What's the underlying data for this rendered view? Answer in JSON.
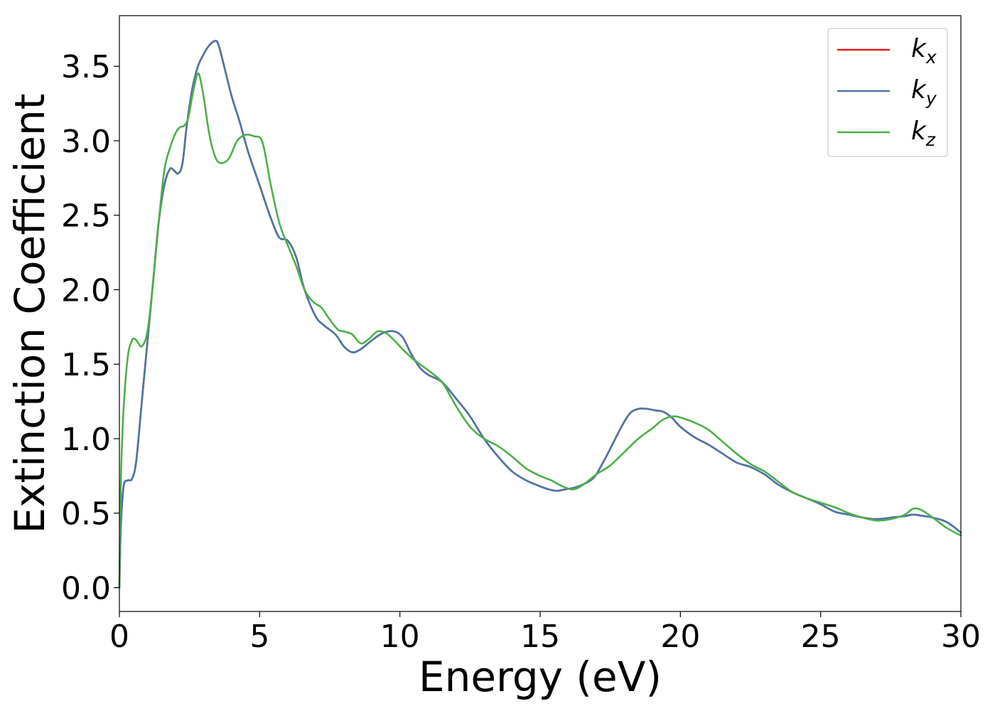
{
  "chart_data": {
    "type": "line",
    "title": "",
    "xlabel": "Energy (eV)",
    "ylabel": "Extinction Coefficient",
    "xlim": [
      0,
      30
    ],
    "ylim": [
      -0.16,
      3.84
    ],
    "xticks": [
      0,
      5,
      10,
      15,
      20,
      25,
      30
    ],
    "xtick_labels": [
      "0",
      "5",
      "10",
      "15",
      "20",
      "25",
      "30"
    ],
    "yticks": [
      0.0,
      0.5,
      1.0,
      1.5,
      2.0,
      2.5,
      3.0,
      3.5
    ],
    "ytick_labels": [
      "0.0",
      "0.5",
      "1.0",
      "1.5",
      "2.0",
      "2.5",
      "3.0",
      "3.5"
    ],
    "grid": false,
    "legend_position": "top-right",
    "series": [
      {
        "name": "k",
        "subscript": "x",
        "color": "#e41a1c",
        "x": [
          0,
          0.05,
          0.15,
          0.3,
          0.45,
          0.6,
          0.8,
          1.0,
          1.2,
          1.4,
          1.6,
          1.8,
          1.95,
          2.1,
          2.25,
          2.4,
          2.6,
          2.8,
          3.0,
          3.2,
          3.4,
          3.5,
          3.6,
          3.8,
          4.0,
          4.3,
          4.6,
          5.0,
          5.4,
          5.7,
          6.0,
          6.3,
          6.6,
          7.0,
          7.3,
          7.7,
          8.0,
          8.3,
          8.6,
          9.0,
          9.4,
          9.8,
          10.1,
          10.4,
          10.7,
          11.0,
          11.5,
          12.0,
          12.5,
          13.0,
          13.5,
          14.0,
          14.5,
          15.0,
          15.3,
          15.6,
          15.9,
          16.2,
          16.5,
          16.8,
          17.0,
          17.3,
          17.6,
          17.9,
          18.2,
          18.5,
          18.8,
          19.1,
          19.4,
          19.7,
          20.0,
          20.5,
          21.0,
          21.5,
          22.0,
          22.5,
          23.0,
          23.5,
          24.0,
          24.5,
          25.0,
          25.5,
          26.0,
          26.5,
          27.0,
          27.5,
          28.0,
          28.3,
          28.7,
          29.0,
          29.5,
          30.0
        ],
        "values": [
          0.0,
          0.4,
          0.68,
          0.72,
          0.73,
          0.85,
          1.25,
          1.65,
          2.05,
          2.45,
          2.7,
          2.81,
          2.8,
          2.78,
          2.85,
          3.1,
          3.35,
          3.5,
          3.58,
          3.64,
          3.67,
          3.66,
          3.6,
          3.45,
          3.3,
          3.12,
          2.92,
          2.7,
          2.48,
          2.35,
          2.33,
          2.22,
          2.0,
          1.82,
          1.76,
          1.7,
          1.62,
          1.58,
          1.6,
          1.66,
          1.71,
          1.72,
          1.68,
          1.57,
          1.48,
          1.43,
          1.38,
          1.27,
          1.15,
          1.0,
          0.88,
          0.78,
          0.72,
          0.68,
          0.66,
          0.65,
          0.66,
          0.67,
          0.69,
          0.72,
          0.76,
          0.86,
          0.97,
          1.08,
          1.17,
          1.2,
          1.2,
          1.19,
          1.18,
          1.14,
          1.08,
          1.01,
          0.96,
          0.9,
          0.84,
          0.81,
          0.76,
          0.69,
          0.64,
          0.6,
          0.56,
          0.51,
          0.49,
          0.47,
          0.46,
          0.47,
          0.48,
          0.49,
          0.48,
          0.47,
          0.44,
          0.37
        ]
      },
      {
        "name": "k",
        "subscript": "y",
        "color": "#4a77aa",
        "x": [
          0,
          0.05,
          0.15,
          0.3,
          0.45,
          0.6,
          0.8,
          1.0,
          1.2,
          1.4,
          1.6,
          1.8,
          1.95,
          2.1,
          2.25,
          2.4,
          2.6,
          2.8,
          3.0,
          3.2,
          3.4,
          3.5,
          3.6,
          3.8,
          4.0,
          4.3,
          4.6,
          5.0,
          5.4,
          5.7,
          6.0,
          6.3,
          6.6,
          7.0,
          7.3,
          7.7,
          8.0,
          8.3,
          8.6,
          9.0,
          9.4,
          9.8,
          10.1,
          10.4,
          10.7,
          11.0,
          11.5,
          12.0,
          12.5,
          13.0,
          13.5,
          14.0,
          14.5,
          15.0,
          15.3,
          15.6,
          15.9,
          16.2,
          16.5,
          16.8,
          17.0,
          17.3,
          17.6,
          17.9,
          18.2,
          18.5,
          18.8,
          19.1,
          19.4,
          19.7,
          20.0,
          20.5,
          21.0,
          21.5,
          22.0,
          22.5,
          23.0,
          23.5,
          24.0,
          24.5,
          25.0,
          25.5,
          26.0,
          26.5,
          27.0,
          27.5,
          28.0,
          28.3,
          28.7,
          29.0,
          29.5,
          30.0
        ],
        "values": [
          0.0,
          0.4,
          0.68,
          0.72,
          0.73,
          0.85,
          1.25,
          1.65,
          2.05,
          2.45,
          2.7,
          2.81,
          2.8,
          2.78,
          2.85,
          3.1,
          3.35,
          3.5,
          3.58,
          3.64,
          3.67,
          3.66,
          3.6,
          3.45,
          3.3,
          3.12,
          2.92,
          2.7,
          2.48,
          2.35,
          2.33,
          2.22,
          2.0,
          1.82,
          1.76,
          1.7,
          1.62,
          1.58,
          1.6,
          1.66,
          1.71,
          1.72,
          1.68,
          1.57,
          1.48,
          1.43,
          1.38,
          1.27,
          1.15,
          1.0,
          0.88,
          0.78,
          0.72,
          0.68,
          0.66,
          0.65,
          0.66,
          0.67,
          0.69,
          0.72,
          0.76,
          0.86,
          0.97,
          1.08,
          1.17,
          1.2,
          1.2,
          1.19,
          1.18,
          1.14,
          1.08,
          1.01,
          0.96,
          0.9,
          0.84,
          0.81,
          0.76,
          0.69,
          0.64,
          0.6,
          0.56,
          0.51,
          0.49,
          0.47,
          0.46,
          0.47,
          0.48,
          0.49,
          0.48,
          0.47,
          0.44,
          0.37
        ]
      },
      {
        "name": "k",
        "subscript": "z",
        "color": "#4daf4a",
        "x": [
          0,
          0.05,
          0.15,
          0.3,
          0.45,
          0.55,
          0.65,
          0.8,
          1.0,
          1.2,
          1.4,
          1.6,
          1.8,
          2.0,
          2.15,
          2.3,
          2.45,
          2.6,
          2.75,
          2.85,
          3.0,
          3.2,
          3.4,
          3.6,
          3.9,
          4.2,
          4.5,
          4.8,
          5.1,
          5.4,
          5.7,
          6.0,
          6.3,
          6.6,
          6.9,
          7.2,
          7.5,
          7.8,
          8.0,
          8.3,
          8.6,
          8.9,
          9.2,
          9.5,
          9.8,
          10.1,
          10.5,
          11.0,
          11.5,
          12.0,
          12.5,
          13.0,
          13.5,
          14.0,
          14.5,
          15.0,
          15.4,
          15.8,
          16.2,
          16.6,
          17.0,
          17.5,
          18.0,
          18.5,
          19.0,
          19.4,
          19.8,
          20.2,
          20.6,
          21.0,
          21.5,
          22.0,
          22.5,
          23.0,
          23.5,
          24.0,
          24.5,
          25.0,
          25.5,
          26.0,
          26.5,
          27.0,
          27.5,
          28.0,
          28.3,
          28.6,
          29.0,
          29.5,
          30.0
        ],
        "values": [
          0.0,
          0.7,
          1.2,
          1.55,
          1.66,
          1.67,
          1.65,
          1.62,
          1.72,
          2.05,
          2.45,
          2.8,
          2.95,
          3.05,
          3.09,
          3.1,
          3.15,
          3.3,
          3.43,
          3.44,
          3.3,
          3.05,
          2.9,
          2.85,
          2.88,
          3.0,
          3.04,
          3.03,
          2.99,
          2.7,
          2.45,
          2.3,
          2.16,
          2.0,
          1.92,
          1.88,
          1.8,
          1.73,
          1.72,
          1.7,
          1.64,
          1.67,
          1.72,
          1.71,
          1.66,
          1.6,
          1.53,
          1.46,
          1.38,
          1.22,
          1.08,
          1.0,
          0.95,
          0.88,
          0.8,
          0.75,
          0.72,
          0.68,
          0.66,
          0.7,
          0.76,
          0.82,
          0.91,
          1.0,
          1.07,
          1.13,
          1.15,
          1.13,
          1.1,
          1.06,
          0.98,
          0.9,
          0.83,
          0.78,
          0.71,
          0.64,
          0.6,
          0.57,
          0.54,
          0.5,
          0.47,
          0.45,
          0.46,
          0.49,
          0.53,
          0.52,
          0.47,
          0.4,
          0.35
        ]
      }
    ]
  }
}
